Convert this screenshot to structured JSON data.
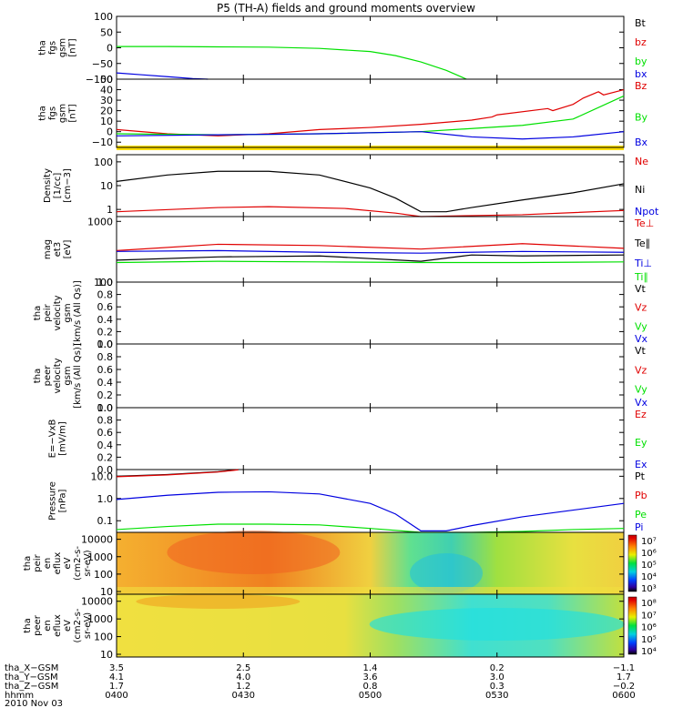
{
  "title": "P5 (TH-A) fields and ground moments overview",
  "date": "2010 Nov 03",
  "colors": {
    "red": "#e00000",
    "green": "#00e000",
    "blue": "#0000e0",
    "black": "#000000",
    "yellow": "#ffe000"
  },
  "chart_data": [
    {
      "type": "line",
      "id": "p1",
      "ylabel": [
        "tha",
        "fgs",
        "gsm",
        "[nT]"
      ],
      "ylim": [
        -100,
        100
      ],
      "log": false,
      "yticks": [
        100,
        50,
        0,
        -50,
        -100
      ],
      "ytick_labels": [
        "100",
        "50",
        "0",
        "−50",
        "−100"
      ],
      "legend": [
        {
          "name": "Bt",
          "color": "black"
        },
        {
          "name": "bz",
          "color": "red"
        },
        {
          "name": "by",
          "color": "green"
        },
        {
          "name": "bx",
          "color": "blue"
        }
      ],
      "series": [
        {
          "name": "by",
          "color": "green",
          "x": [
            0,
            0.1,
            0.2,
            0.3,
            0.4,
            0.5,
            0.55,
            0.6,
            0.65,
            0.69
          ],
          "y": [
            4,
            4,
            3,
            2,
            -2,
            -12,
            -25,
            -45,
            -72,
            -100
          ]
        },
        {
          "name": "bx",
          "color": "blue",
          "x": [
            0,
            0.05,
            0.1,
            0.15,
            0.18
          ],
          "y": [
            -80,
            -86,
            -92,
            -98,
            -100
          ]
        }
      ]
    },
    {
      "type": "line",
      "id": "p2",
      "ylabel": [
        "tha",
        "fgs",
        "gsm",
        "[nT]"
      ],
      "ylim": [
        -15,
        50
      ],
      "log": false,
      "yticks": [
        50,
        40,
        30,
        20,
        10,
        0,
        -10
      ],
      "ytick_labels": [
        "50",
        "40",
        "30",
        "20",
        "10",
        "0",
        "−10"
      ],
      "legend": [
        {
          "name": "Bz",
          "color": "red"
        },
        {
          "name": "By",
          "color": "green"
        },
        {
          "name": "Bx",
          "color": "blue"
        }
      ],
      "series": [
        {
          "name": "Bz",
          "color": "red",
          "x": [
            0,
            0.1,
            0.2,
            0.3,
            0.4,
            0.5,
            0.6,
            0.7,
            0.74,
            0.75,
            0.85,
            0.86,
            0.9,
            0.92,
            0.95,
            0.96,
            1
          ],
          "y": [
            2,
            -2,
            -4,
            -2,
            2,
            4,
            7,
            11,
            14,
            16,
            22,
            20,
            26,
            32,
            38,
            35,
            40
          ]
        },
        {
          "name": "By",
          "color": "green",
          "x": [
            0,
            0.2,
            0.4,
            0.6,
            0.7,
            0.8,
            0.9,
            1
          ],
          "y": [
            -2,
            -3,
            -2,
            0,
            3,
            6,
            12,
            34
          ]
        },
        {
          "name": "Bx",
          "color": "blue",
          "x": [
            0,
            0.2,
            0.4,
            0.6,
            0.7,
            0.8,
            0.9,
            1
          ],
          "y": [
            -4,
            -3,
            -2,
            0,
            -5,
            -7,
            -5,
            0
          ]
        }
      ]
    },
    {
      "type": "line",
      "id": "p3",
      "ylabel": [
        "Density",
        "[1/cc]",
        "[cm−3]"
      ],
      "ylim": [
        0.5,
        200
      ],
      "log": true,
      "yticks": [
        100,
        10,
        1
      ],
      "ytick_labels": [
        "100",
        "10",
        "1"
      ],
      "legend": [
        {
          "name": "Ne",
          "color": "red"
        },
        {
          "name": "Ni",
          "color": "black"
        },
        {
          "name": "Npot",
          "color": "blue"
        }
      ],
      "series": [
        {
          "name": "Ni",
          "color": "black",
          "x": [
            0,
            0.1,
            0.2,
            0.3,
            0.4,
            0.5,
            0.55,
            0.6,
            0.65,
            0.7,
            0.8,
            0.9,
            1
          ],
          "y": [
            15,
            28,
            40,
            40,
            28,
            8,
            3,
            0.8,
            0.8,
            1.2,
            2.5,
            5,
            12
          ]
        },
        {
          "name": "Ne",
          "color": "red",
          "x": [
            0,
            0.2,
            0.3,
            0.45,
            0.55,
            0.6,
            0.7,
            0.8,
            1
          ],
          "y": [
            0.8,
            1.2,
            1.3,
            1.1,
            0.7,
            0.5,
            0.55,
            0.6,
            0.9
          ]
        }
      ]
    },
    {
      "type": "line",
      "id": "p4",
      "ylabel": [
        "mag",
        "et3",
        "[eV]"
      ],
      "ylim": [
        100,
        1200
      ],
      "log": true,
      "yticks": [
        1000,
        100
      ],
      "ytick_labels": [
        "1000",
        "100"
      ],
      "legend": [
        {
          "name": "Te⊥",
          "color": "red"
        },
        {
          "name": "Te∥",
          "color": "black"
        },
        {
          "name": "Ti⊥",
          "color": "blue"
        },
        {
          "name": "Ti∥",
          "color": "green"
        }
      ],
      "series": [
        {
          "name": "Te⊥",
          "color": "red",
          "x": [
            0,
            0.2,
            0.4,
            0.6,
            0.8,
            1
          ],
          "y": [
            330,
            420,
            400,
            350,
            430,
            360
          ]
        },
        {
          "name": "Ti⊥",
          "color": "blue",
          "x": [
            0,
            0.2,
            0.4,
            0.6,
            0.8,
            1
          ],
          "y": [
            320,
            330,
            310,
            300,
            320,
            310
          ]
        },
        {
          "name": "Te∥",
          "color": "black",
          "x": [
            0,
            0.2,
            0.4,
            0.6,
            0.7,
            0.8,
            1
          ],
          "y": [
            230,
            260,
            270,
            220,
            280,
            270,
            280
          ]
        },
        {
          "name": "Ti∥",
          "color": "green",
          "x": [
            0,
            0.2,
            0.4,
            0.6,
            0.8,
            1
          ],
          "y": [
            210,
            220,
            215,
            210,
            210,
            215
          ]
        }
      ]
    },
    {
      "type": "line",
      "id": "p5",
      "ylabel": [
        "tha",
        "peir",
        "velocity",
        "gsm",
        "[km/s (All Qs)]"
      ],
      "ylim": [
        0,
        1
      ],
      "log": false,
      "yticks": [
        1,
        0.8,
        0.6,
        0.4,
        0.2,
        0
      ],
      "ytick_labels": [
        "1.0",
        "0.8",
        "0.6",
        "0.4",
        "0.2",
        "0.0"
      ],
      "legend": [
        {
          "name": "Vt",
          "color": "black"
        },
        {
          "name": "Vz",
          "color": "red"
        },
        {
          "name": "Vy",
          "color": "green"
        },
        {
          "name": "Vx",
          "color": "blue"
        }
      ],
      "series": []
    },
    {
      "type": "line",
      "id": "p6",
      "ylabel": [
        "tha",
        "peer",
        "velocity",
        "gsm",
        "[km/s (All Qs)]"
      ],
      "ylim": [
        0,
        1
      ],
      "log": false,
      "yticks": [
        1,
        0.8,
        0.6,
        0.4,
        0.2,
        0
      ],
      "ytick_labels": [
        "1.0",
        "0.8",
        "0.6",
        "0.4",
        "0.2",
        "0.0"
      ],
      "legend": [
        {
          "name": "Vt",
          "color": "black"
        },
        {
          "name": "Vz",
          "color": "red"
        },
        {
          "name": "Vy",
          "color": "green"
        },
        {
          "name": "Vx",
          "color": "blue"
        }
      ],
      "series": []
    },
    {
      "type": "line",
      "id": "p7",
      "ylabel": [
        "E=−VxB",
        "[mV/m]"
      ],
      "ylim": [
        0,
        1
      ],
      "log": false,
      "yticks": [
        1,
        0.8,
        0.6,
        0.4,
        0.2,
        0
      ],
      "ytick_labels": [
        "1.0",
        "0.8",
        "0.6",
        "0.4",
        "0.2",
        "0.0"
      ],
      "legend": [
        {
          "name": "Ez",
          "color": "red"
        },
        {
          "name": "Ey",
          "color": "green"
        },
        {
          "name": "Ex",
          "color": "blue"
        }
      ],
      "series": []
    },
    {
      "type": "line",
      "id": "p8",
      "ylabel": [
        "Pressure",
        "[nPa]"
      ],
      "ylim": [
        0.03,
        20
      ],
      "log": true,
      "yticks": [
        10,
        1,
        0.1
      ],
      "ytick_labels": [
        "10.0",
        "1.0",
        "0.1"
      ],
      "legend": [
        {
          "name": "Pt",
          "color": "black"
        },
        {
          "name": "Pb",
          "color": "red"
        },
        {
          "name": "Pe",
          "color": "green"
        },
        {
          "name": "Pi",
          "color": "blue"
        }
      ],
      "series": [
        {
          "name": "Pi",
          "color": "blue",
          "x": [
            0,
            0.1,
            0.2,
            0.3,
            0.4,
            0.5,
            0.55,
            0.6,
            0.65,
            0.7,
            0.8,
            0.9,
            1
          ],
          "y": [
            0.9,
            1.4,
            1.9,
            2.0,
            1.6,
            0.6,
            0.2,
            0.035,
            0.035,
            0.06,
            0.15,
            0.3,
            0.6
          ]
        },
        {
          "name": "Pe",
          "color": "green",
          "x": [
            0,
            0.1,
            0.2,
            0.3,
            0.4,
            0.5,
            0.6,
            0.7,
            0.8,
            0.9,
            1
          ],
          "y": [
            0.04,
            0.055,
            0.07,
            0.07,
            0.065,
            0.045,
            0.03,
            0.03,
            0.033,
            0.04,
            0.045
          ]
        },
        {
          "name": "Pt",
          "color": "black",
          "x": [
            0,
            0.1,
            0.2,
            0.24
          ],
          "y": [
            10,
            12,
            16,
            20
          ]
        },
        {
          "name": "Pb",
          "color": "red",
          "x": [
            0,
            0.1,
            0.2,
            0.24
          ],
          "y": [
            9.5,
            11.5,
            15.5,
            19.5
          ]
        }
      ]
    },
    {
      "type": "heatmap",
      "id": "p9",
      "ylabel": [
        "tha",
        "peir",
        "en",
        "eflux",
        "eV",
        "(cm2-s-",
        "sr-eV)"
      ],
      "ylim": [
        7,
        25000
      ],
      "log": true,
      "yticks": [
        10000,
        1000,
        100,
        10
      ],
      "ytick_labels": [
        "10000",
        "1000",
        "100",
        "10"
      ],
      "colorbar": {
        "ticks": [
          "10⁷",
          "10⁶",
          "10⁵",
          "10⁴",
          "10³"
        ]
      }
    },
    {
      "type": "heatmap",
      "id": "p10",
      "ylabel": [
        "tha",
        "peer",
        "en",
        "eflux",
        "eV",
        "(cm2-s-",
        "sr-eV)"
      ],
      "ylim": [
        7,
        25000
      ],
      "log": true,
      "yticks": [
        10000,
        1000,
        100,
        10
      ],
      "ytick_labels": [
        "10000",
        "1000",
        "100",
        "10"
      ],
      "colorbar": {
        "ticks": [
          "10⁸",
          "10⁷",
          "10⁶",
          "10⁵",
          "10⁴"
        ]
      }
    }
  ],
  "xaxis": {
    "rows": [
      {
        "label": "tha_X−GSM",
        "values": [
          "3.5",
          "2.5",
          "1.4",
          "0.2",
          "−1.1"
        ]
      },
      {
        "label": "tha_Y−GSM",
        "values": [
          "4.1",
          "4.0",
          "3.6",
          "3.0",
          "1.7"
        ]
      },
      {
        "label": "tha_Z−GSM",
        "values": [
          "1.7",
          "1.2",
          "0.8",
          "0.3",
          "−0.2"
        ]
      },
      {
        "label": "hhmm",
        "values": [
          "0400",
          "0430",
          "0500",
          "0530",
          "0600"
        ]
      }
    ]
  }
}
